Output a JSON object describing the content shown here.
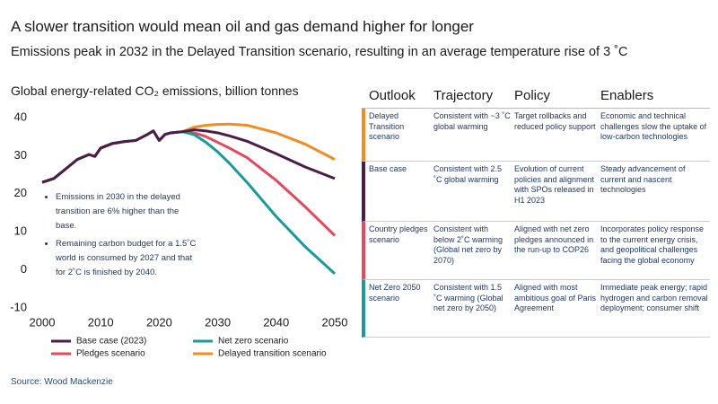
{
  "title": "A slower transition would mean oil and gas demand higher for longer",
  "subtitle": "Emissions peak in 2032 in the Delayed Transition scenario, resulting in an average temperature rise of 3 ˚C",
  "chart_data": {
    "type": "line",
    "title": "Global energy-related CO₂ emissions, billion tonnes",
    "x": [
      2000,
      2002,
      2004,
      2006,
      2008,
      2009,
      2010,
      2012,
      2014,
      2016,
      2018,
      2019,
      2020,
      2021,
      2022,
      2024,
      2026,
      2028,
      2030,
      2032,
      2035,
      2040,
      2045,
      2050
    ],
    "series": [
      {
        "name": "Base case (2023)",
        "color": "#4b1d47",
        "values": [
          23,
          24,
          26.5,
          29,
          30.3,
          29.8,
          32,
          33.2,
          33.7,
          34,
          35.6,
          36.5,
          34,
          35.6,
          36,
          36.3,
          36.8,
          36.5,
          36,
          35.2,
          33.8,
          30.5,
          27,
          24
        ]
      },
      {
        "name": "Net zero scenario",
        "color": "#179b9b",
        "values": [
          23,
          24,
          26.5,
          29,
          30.3,
          29.8,
          32,
          33.2,
          33.7,
          34,
          35.6,
          36.5,
          34,
          35.6,
          36,
          36.3,
          35.5,
          33.5,
          31,
          28,
          23,
          14,
          6,
          -1
        ]
      },
      {
        "name": "Pledges scenario",
        "color": "#e8475c",
        "values": [
          23,
          24,
          26.5,
          29,
          30.3,
          29.8,
          32,
          33.2,
          33.7,
          34,
          35.6,
          36.5,
          34,
          35.6,
          36,
          36.3,
          36,
          35,
          33.5,
          32,
          29.5,
          23.5,
          16.5,
          9
        ]
      },
      {
        "name": "Delayed transition scenario",
        "color": "#f28c1e",
        "values": [
          23,
          24,
          26.5,
          29,
          30.3,
          29.8,
          32,
          33.2,
          33.7,
          34,
          35.6,
          36.5,
          34,
          35.6,
          36,
          36.3,
          37.5,
          38,
          38.2,
          38.3,
          38,
          36,
          33,
          29
        ]
      }
    ],
    "xlim": [
      2000,
      2050
    ],
    "xticks": [
      2000,
      2010,
      2020,
      2030,
      2040,
      2050
    ],
    "ylim": [
      -10,
      40
    ],
    "yticks": [
      -10,
      0,
      10,
      20,
      30,
      40
    ],
    "grid": false,
    "annotations": [
      "Emissions in 2030 in the delayed transition are 6% higher than the base.",
      "Remaining carbon budget for a 1.5˚C world is consumed by 2027 and that for 2˚C is finished by 2040."
    ]
  },
  "table": {
    "header": [
      "Outlook",
      "Trajectory",
      "Policy",
      "Enablers"
    ],
    "rows": [
      [
        "Delayed Transition scenario",
        "Consistent with ~3 ˚C global warming",
        "Target rollbacks and reduced policy support",
        "Economic and technical challenges slow the uptake of low-carbon technologies"
      ],
      [
        "Base case",
        "Consistent with 2.5 ˚C global warming",
        "Evolution of current policies and alignment with SPOs released in H1 2023",
        "Steady advancement of current and nascent technologies"
      ],
      [
        "Country pledges scenario",
        "Consistent with below 2˚C warming (Global net zero by 2070)",
        "Aligned with net zero pledges announced in the run-up to COP26",
        "Incorporates policy response to the current energy crisis, and geopolitical challenges facing the global economy"
      ],
      [
        "Net Zero 2050 scenario",
        "Consistent with 1.5 ˚C warming (Global net zero by 2050)",
        "Aligned with most ambitious goal of Paris Agreement",
        "Immediate peak energy; rapid hydrogen and carbon removal deployment; consumer shift"
      ]
    ]
  },
  "source": "Source: Wood Mackenzie"
}
